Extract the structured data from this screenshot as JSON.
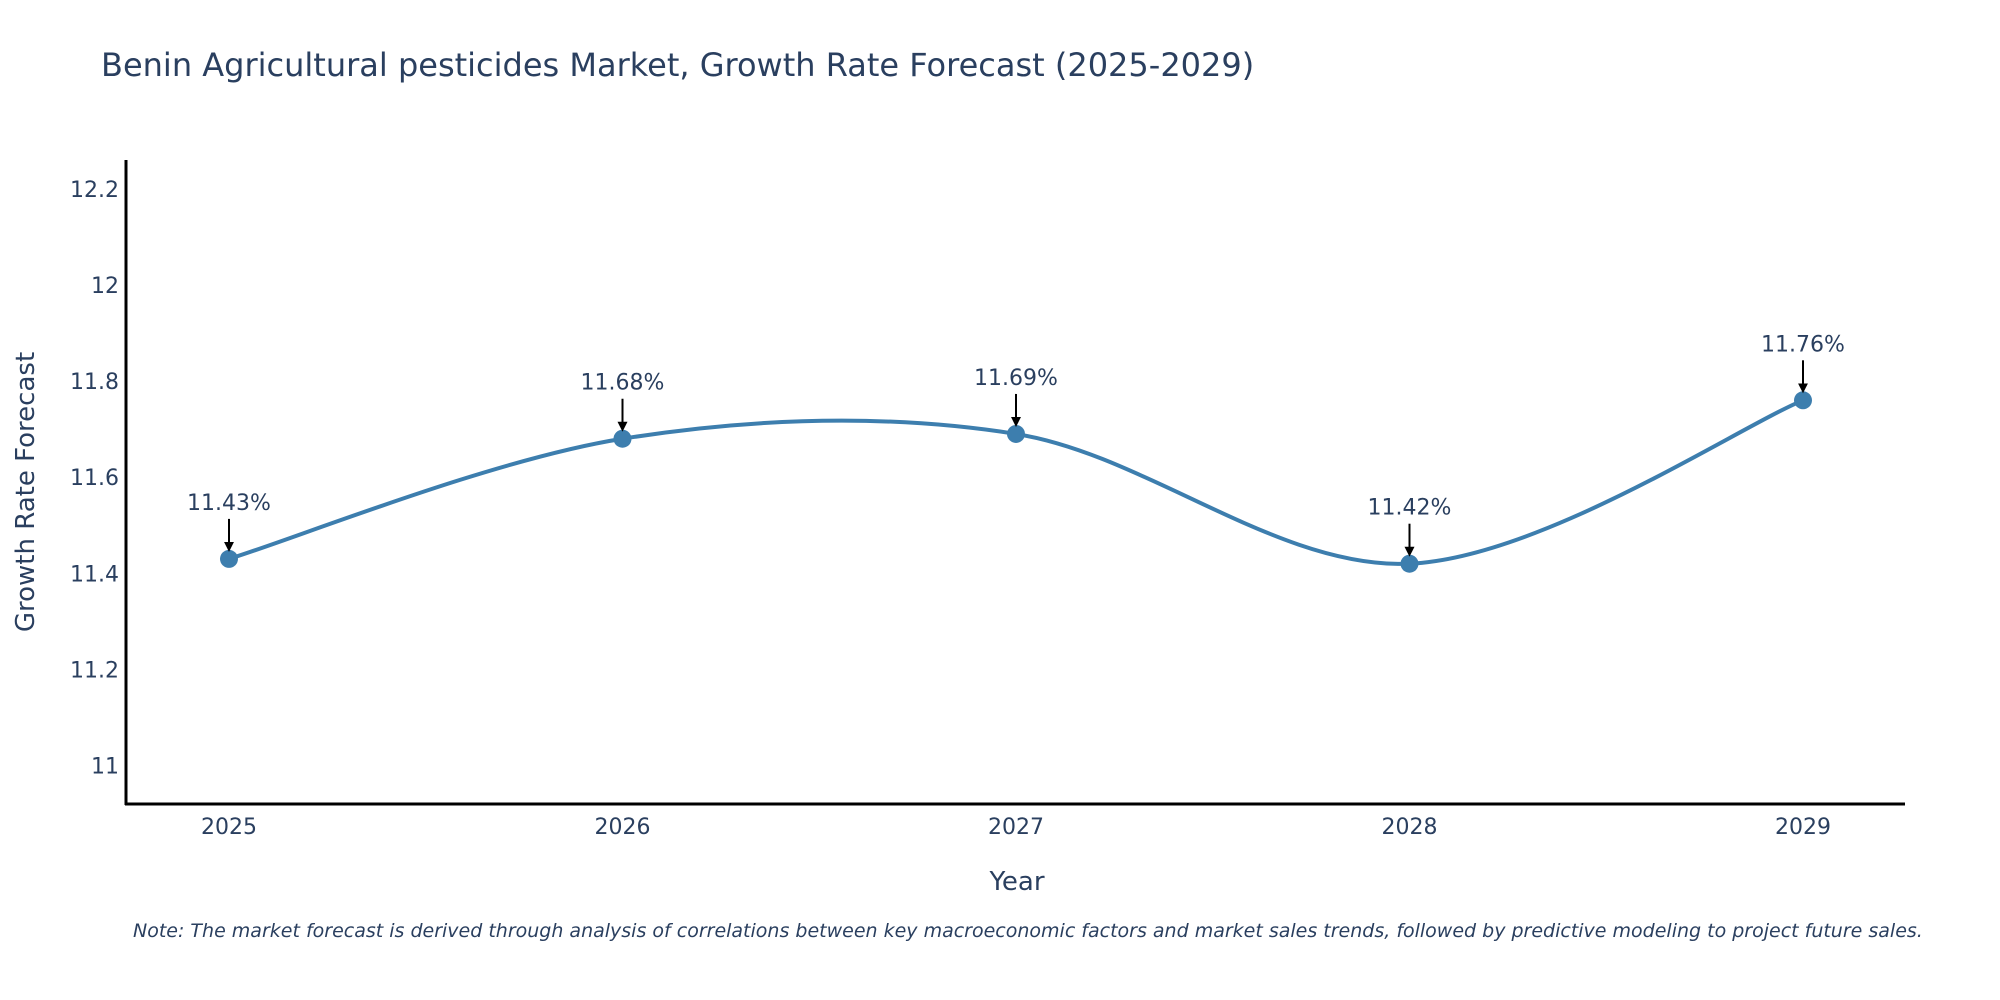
{
  "chart_data": {
    "type": "line",
    "title": "Benin Agricultural pesticides Market, Growth Rate Forecast (2025-2029)",
    "xlabel": "Year",
    "ylabel": "Growth Rate Forecast",
    "categories": [
      "2025",
      "2026",
      "2027",
      "2028",
      "2029"
    ],
    "values": [
      11.43,
      11.68,
      11.69,
      11.42,
      11.76
    ],
    "data_labels": [
      "11.43%",
      "11.68%",
      "11.69%",
      "11.42%",
      "11.76%"
    ],
    "yticks": [
      11,
      11.2,
      11.4,
      11.6,
      11.8,
      12,
      12.2
    ],
    "ytick_labels": [
      "11",
      "11.2",
      "11.4",
      "11.6",
      "11.8",
      "12",
      "12.2"
    ],
    "ylim": [
      10.92,
      12.26
    ],
    "smoothing": "spline",
    "line_color": "#3d7eae",
    "marker_color": "#3d7eae",
    "annotation_arrow_color": "#000000",
    "grid": false
  },
  "note": "Note: The market forecast is derived through analysis of correlations between key macroeconomic factors and market sales trends, followed by predictive modeling to project future sales."
}
